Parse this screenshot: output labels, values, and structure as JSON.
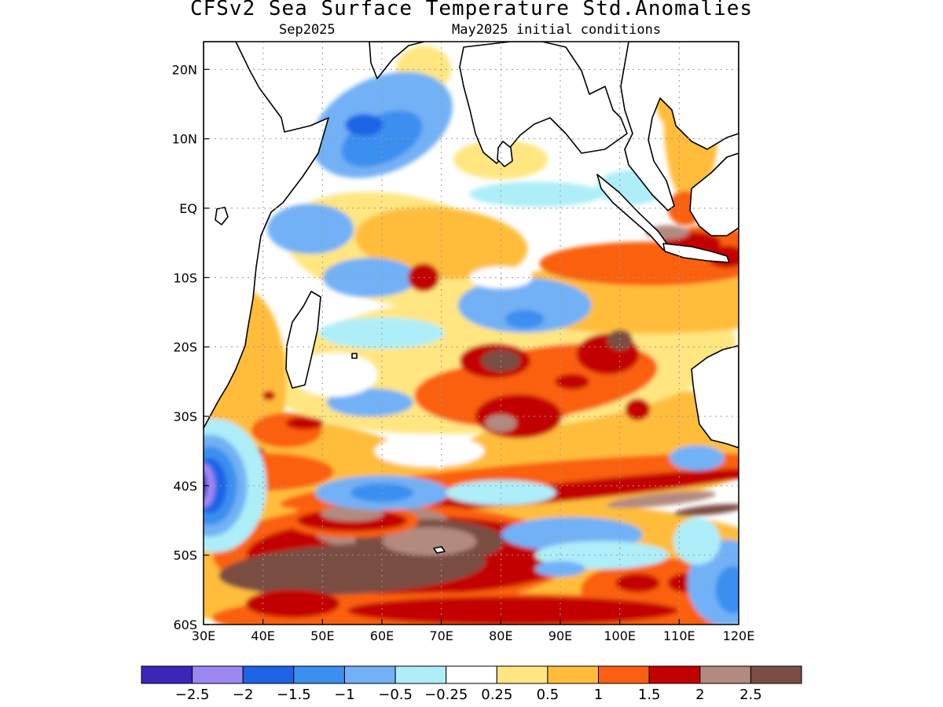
{
  "header": {
    "title": "CFSv2 Sea Surface Temperature Std.Anomalies",
    "valid_month": "Sep2025",
    "init_label": "May2025 initial conditions"
  },
  "chart_data": {
    "type": "heatmap",
    "title": "CFSv2 Sea Surface Temperature Std.Anomalies",
    "region": "Indian Ocean",
    "lon_range": [
      30,
      120
    ],
    "lat_range": [
      -60,
      24
    ],
    "grid": true,
    "x_ticks": [
      "30E",
      "40E",
      "50E",
      "60E",
      "70E",
      "80E",
      "90E",
      "100E",
      "110E",
      "120E"
    ],
    "y_ticks": [
      "20N",
      "10N",
      "EQ",
      "10S",
      "20S",
      "30S",
      "40S",
      "50S",
      "60S"
    ],
    "colorbar": {
      "labels": [
        "-2.5",
        "-2",
        "-1.5",
        "-1",
        "-0.5",
        "-0.25",
        "0.25",
        "0.5",
        "1",
        "1.5",
        "2",
        "2.5"
      ],
      "colors": [
        "#3a26b8",
        "#9d88f3",
        "#1c63e6",
        "#3a8ff0",
        "#72b1f5",
        "#aeeef8",
        "#ffffff",
        "#ffe680",
        "#ffbd3b",
        "#fa6010",
        "#c30000",
        "#b38a7f",
        "#7a4e42"
      ]
    },
    "features": [
      {
        "label": "Arabian Sea negative anomaly",
        "center": [
          65,
          12
        ],
        "value": -1.0
      },
      {
        "label": "Central tropical negative",
        "center": [
          85,
          -15
        ],
        "value": -0.5
      },
      {
        "label": "Sumatra/Java coastal warm",
        "center": [
          110,
          -6
        ],
        "value": 2.0
      },
      {
        "label": "Subtropical warm belt",
        "center": [
          85,
          -27
        ],
        "value": 2.0
      },
      {
        "label": "Southern Ocean warm belt",
        "center": [
          72,
          -50
        ],
        "value": 2.5
      },
      {
        "label": "SW Indian Ocean cold",
        "center": [
          32,
          -40
        ],
        "value": -2.5
      },
      {
        "label": "Southern cold patch",
        "center": [
          118,
          -53
        ],
        "value": -1.0
      }
    ]
  }
}
